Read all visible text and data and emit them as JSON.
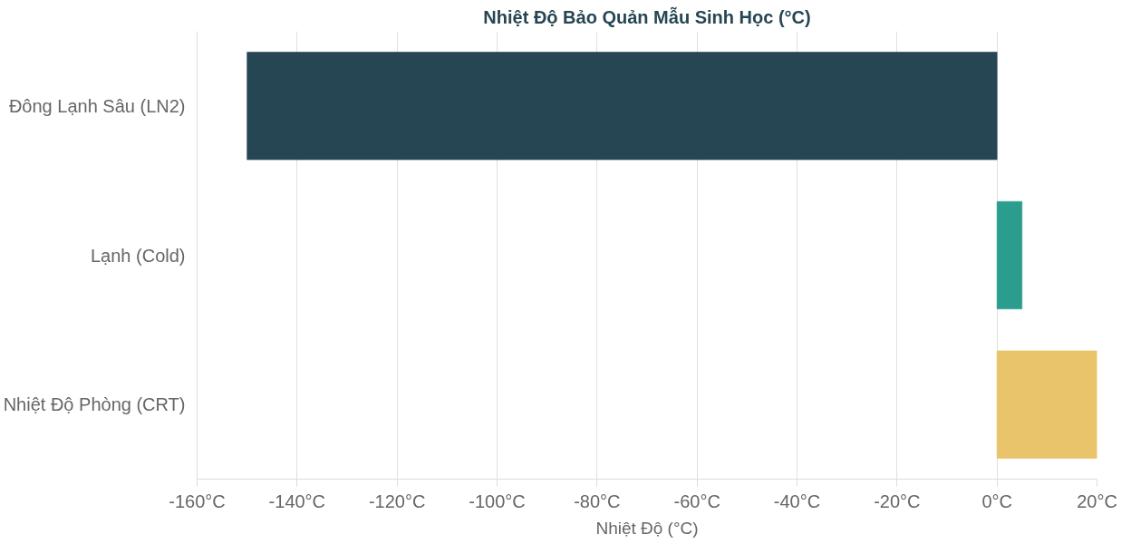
{
  "chart_data": {
    "type": "bar",
    "orientation": "horizontal",
    "title": "Nhiệt Độ Bảo Quản Mẫu Sinh Học (°C)",
    "xlabel": "Nhiệt Độ (°C)",
    "categories": [
      "Đông Lạnh Sâu (LN2)",
      "Lạnh (Cold)",
      "Nhiệt Độ Phòng (CRT)"
    ],
    "values": [
      -150,
      5,
      20
    ],
    "colors": [
      "#264653",
      "#2a9d8f",
      "#e9c46a"
    ],
    "xlim": [
      -160,
      20
    ],
    "xticks": [
      {
        "value": -160,
        "label": "-160°C"
      },
      {
        "value": -140,
        "label": "-140°C"
      },
      {
        "value": -120,
        "label": "-120°C"
      },
      {
        "value": -100,
        "label": "-100°C"
      },
      {
        "value": -80,
        "label": "-80°C"
      },
      {
        "value": -60,
        "label": "-60°C"
      },
      {
        "value": -40,
        "label": "-40°C"
      },
      {
        "value": -20,
        "label": "-20°C"
      },
      {
        "value": 0,
        "label": "0°C"
      },
      {
        "value": 20,
        "label": "20°C"
      }
    ],
    "grid": "x"
  }
}
